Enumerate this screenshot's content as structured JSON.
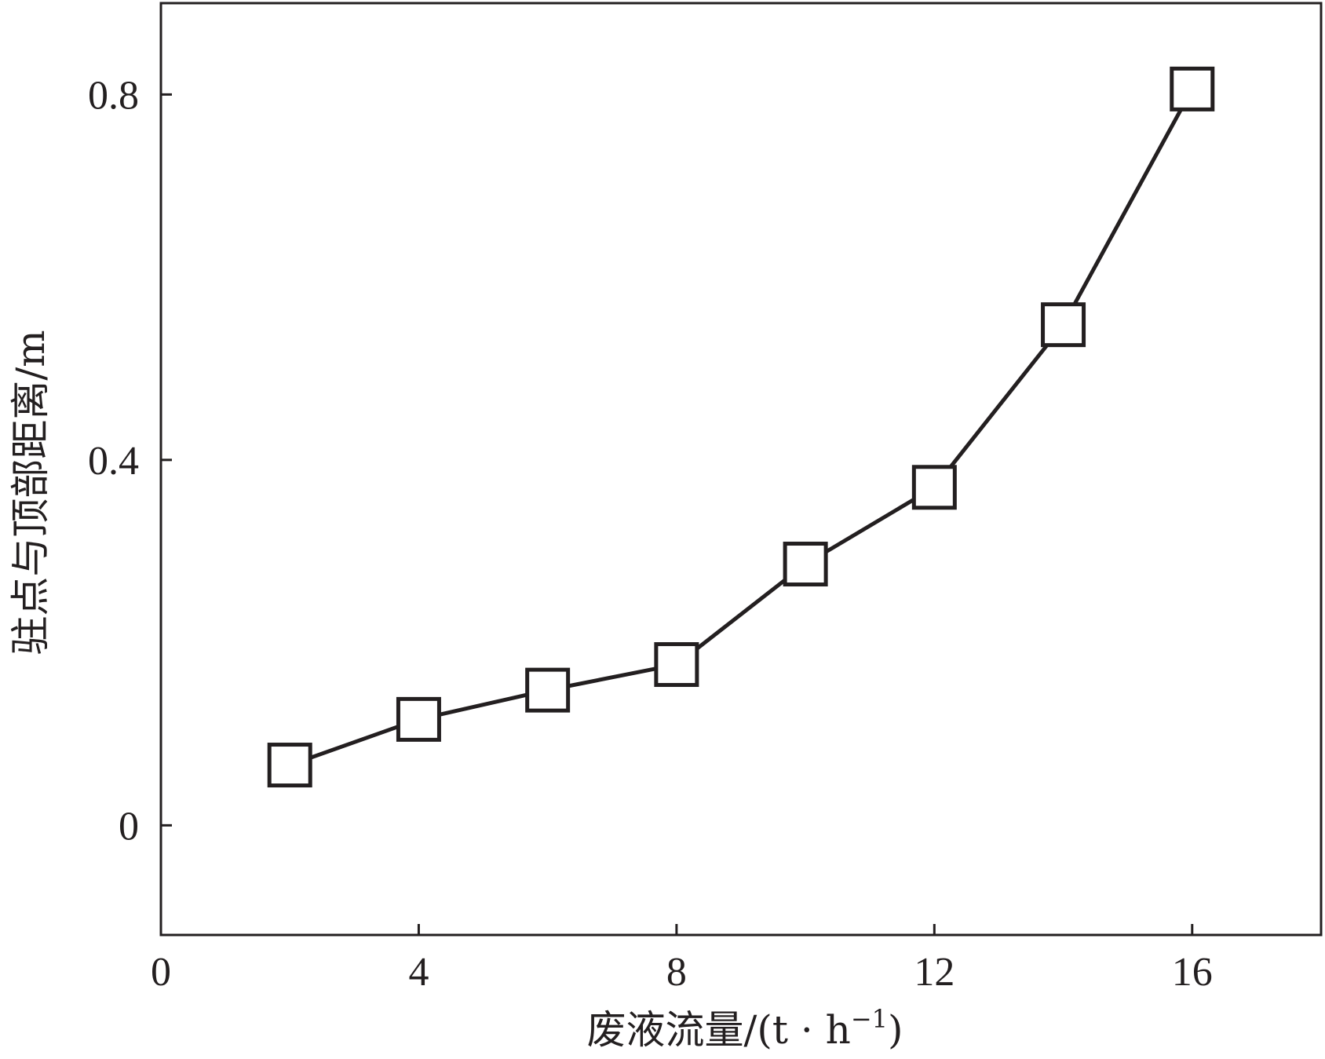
{
  "chart_data": {
    "type": "line",
    "xlabel": "废液流量/(t · h",
    "xlabel_sup": "−1",
    "xlabel_close": ")",
    "ylabel": "驻点与顶部距离/m",
    "xlim": [
      0,
      18
    ],
    "ylim": [
      -0.12,
      0.9
    ],
    "xticks": [
      0,
      4,
      8,
      12,
      16
    ],
    "xtick_labels": [
      "0",
      "4",
      "8",
      "12",
      "16"
    ],
    "yticks": [
      0,
      0.4,
      0.8
    ],
    "ytick_labels": [
      "0",
      "0.4",
      "0.8"
    ],
    "grid": false,
    "series": [
      {
        "marker": "open-square",
        "color": "#231f20",
        "x": [
          2,
          4,
          6,
          8,
          10,
          12,
          14,
          16
        ],
        "y": [
          0.066,
          0.116,
          0.148,
          0.176,
          0.286,
          0.37,
          0.548,
          0.806
        ]
      }
    ]
  }
}
